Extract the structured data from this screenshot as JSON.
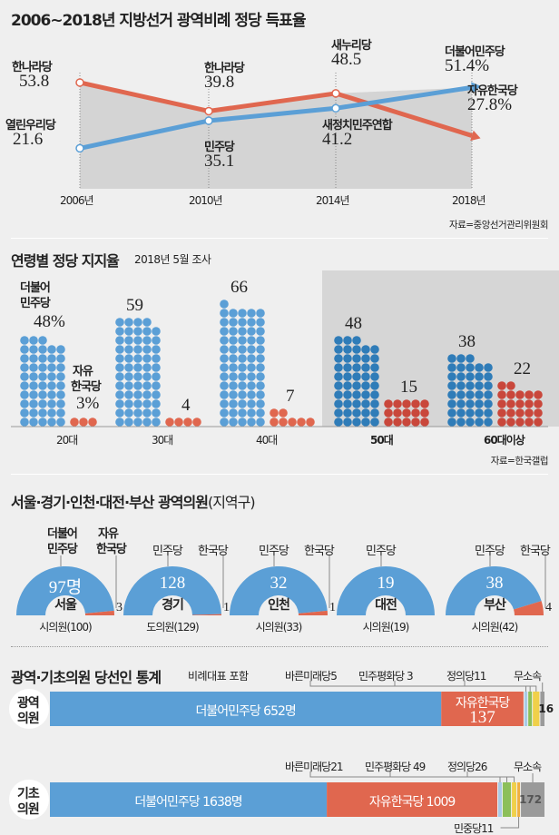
{
  "colors": {
    "blue": "#5b9fd6",
    "red": "#e0674f",
    "blue_dark": "#2f7cb8",
    "red_dark": "#c9473b",
    "gray": "#9a9a9a",
    "yellow": "#f0d04a",
    "green": "#8cbf5a",
    "panel": "#d6d6d6"
  },
  "chart_data": [
    {
      "type": "line",
      "title": "2006~2018년 지방선거 광역비례 정당 득표율",
      "x": [
        "2006년",
        "2010년",
        "2014년",
        "2018년"
      ],
      "source": "자료=중앙선거관리위원회",
      "series": [
        {
          "name": "red",
          "color": "#e0674f",
          "values": [
            53.8,
            39.8,
            48.5,
            27.8
          ],
          "labels": [
            "한나라당",
            "한나라당",
            "새누리당",
            "자유한국당"
          ],
          "value_text": [
            "53.8",
            "39.8",
            "48.5",
            "27.8%"
          ]
        },
        {
          "name": "blue",
          "color": "#5b9fd6",
          "values": [
            21.6,
            35.1,
            41.2,
            51.4
          ],
          "labels": [
            "열린우리당",
            "민주당",
            "새정치민주연합",
            "더불어민주당"
          ],
          "value_text": [
            "21.6",
            "35.1",
            "41.2",
            "51.4%"
          ]
        }
      ]
    },
    {
      "type": "bar",
      "title": "연령별 정당 지지율",
      "subtitle": "2018년 5월 조사",
      "categories": [
        "20대",
        "30대",
        "40대",
        "50대",
        "60대이상"
      ],
      "highlight": [
        "50대",
        "60대이상"
      ],
      "source": "자료=한국갤럽",
      "series": [
        {
          "name": "더불어민주당",
          "values": [
            48,
            59,
            66,
            48,
            38
          ]
        },
        {
          "name": "자유한국당",
          "values": [
            3,
            4,
            7,
            15,
            22
          ]
        }
      ],
      "legend": {
        "blue_line1": "더불어",
        "blue_line2": "민주당",
        "blue_value": "48%",
        "red_line1": "자유",
        "red_line2": "한국당",
        "red_value": "3%"
      }
    },
    {
      "type": "pie",
      "title": "서울·경기·인천·대전·부산 광역의원",
      "title_suffix": "(지역구)",
      "header": {
        "blue_line1": "더불어",
        "blue_line2": "민주당",
        "red_line1": "자유",
        "red_line2": "한국당"
      },
      "items": [
        {
          "city": "서울",
          "blue": 97,
          "red": 3,
          "blue_text": "97명",
          "red_text": "3",
          "blue_label": "",
          "red_label": "",
          "caption": "시의원(100)"
        },
        {
          "city": "경기",
          "blue": 128,
          "red": 1,
          "blue_text": "128",
          "red_text": "1",
          "blue_label": "민주당",
          "red_label": "한국당",
          "caption": "도의원(129)"
        },
        {
          "city": "인천",
          "blue": 32,
          "red": 1,
          "blue_text": "32",
          "red_text": "1",
          "blue_label": "민주당",
          "red_label": "한국당",
          "caption": "시의원(33)"
        },
        {
          "city": "대전",
          "blue": 19,
          "red": 0,
          "blue_text": "19",
          "red_text": "",
          "blue_label": "민주당",
          "red_label": "",
          "caption": "시의원(19)"
        },
        {
          "city": "부산",
          "blue": 38,
          "red": 4,
          "blue_text": "38",
          "red_text": "4",
          "blue_label": "민주당",
          "red_label": "한국당",
          "caption": "시의원(42)"
        }
      ]
    },
    {
      "type": "bar",
      "title": "광역·기초의원 당선인 통계",
      "subtitle": "비례대표 포함",
      "rows": [
        {
          "label1": "광역",
          "label2": "의원",
          "segments": [
            {
              "name": "더불어민주당",
              "value": 652,
              "text": "더불어민주당 652명",
              "color": "blue"
            },
            {
              "name": "자유한국당",
              "value": 137,
              "text": "자유한국당",
              "text2": "137",
              "color": "red"
            },
            {
              "name": "바른미래당",
              "value": 5,
              "text": "바른미래당5",
              "color": "blue_light"
            },
            {
              "name": "민주평화당",
              "value": 3,
              "text": "민주평화당 3",
              "color": "green"
            },
            {
              "name": "정의당",
              "value": 11,
              "text": "정의당11",
              "color": "yellow"
            },
            {
              "name": "무소속",
              "value": 16,
              "text": "무소속",
              "text2": "16",
              "color": "gray"
            }
          ]
        },
        {
          "label1": "기초",
          "label2": "의원",
          "segments": [
            {
              "name": "더불어민주당",
              "value": 1638,
              "text": "더불어민주당 1638명",
              "color": "blue"
            },
            {
              "name": "자유한국당",
              "value": 1009,
              "text": "자유한국당 1009",
              "color": "red"
            },
            {
              "name": "바른미래당",
              "value": 21,
              "text": "바른미래당21",
              "color": "blue_light"
            },
            {
              "name": "민주평화당",
              "value": 49,
              "text": "민주평화당 49",
              "color": "green"
            },
            {
              "name": "정의당",
              "value": 26,
              "text": "정의당26",
              "color": "yellow"
            },
            {
              "name": "민중당",
              "value": 11,
              "text": "민중당11",
              "color": "orange"
            },
            {
              "name": "무소속",
              "value": 172,
              "text": "무소속",
              "text2": "172",
              "color": "gray"
            }
          ]
        }
      ]
    }
  ]
}
